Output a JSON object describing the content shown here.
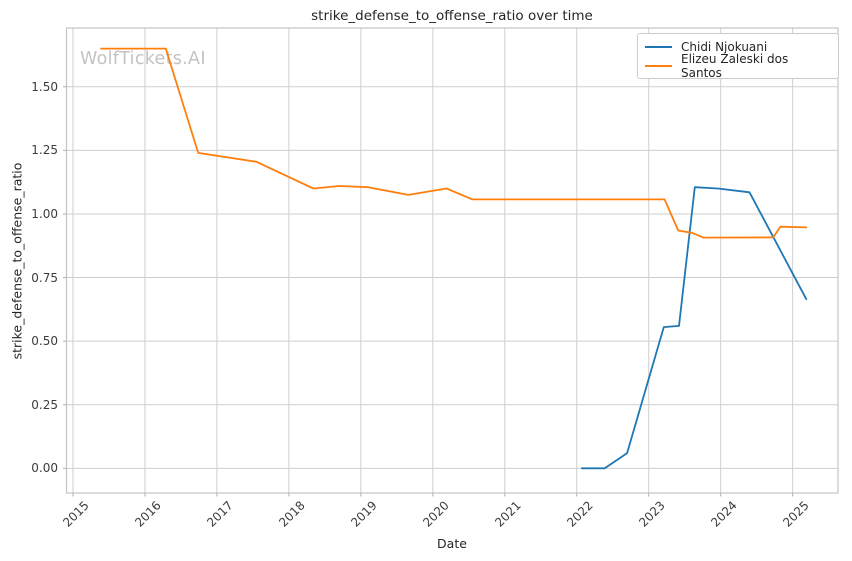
{
  "watermark": "WolfTickets.AI",
  "chart_data": {
    "type": "line",
    "title": "strike_defense_to_offense_ratio over time",
    "xlabel": "Date",
    "ylabel": "strike_defense_to_offense_ratio",
    "xlim": [
      2014.91,
      2025.63
    ],
    "ylim": [
      -0.097,
      1.731
    ],
    "x_ticks": [
      2015,
      2016,
      2017,
      2018,
      2019,
      2020,
      2021,
      2022,
      2023,
      2024,
      2025
    ],
    "y_ticks": [
      0.0,
      0.25,
      0.5,
      0.75,
      1.0,
      1.25,
      1.5
    ],
    "y_tick_labels": [
      "0.00",
      "0.25",
      "0.50",
      "0.75",
      "1.00",
      "1.25",
      "1.50"
    ],
    "grid": true,
    "legend_position": "upper-right",
    "colors": {
      "grid": "#cfcfcf",
      "spine": "#c4c4c4",
      "tick_mark": "#b0b0b0",
      "text": "#262626",
      "watermark": "#c3c3c3"
    },
    "series": [
      {
        "name": "Chidi Njokuani",
        "color": "#1f77b4",
        "points": [
          [
            2022.07,
            0.0
          ],
          [
            2022.39,
            0.0
          ],
          [
            2022.7,
            0.06
          ],
          [
            2023.21,
            0.555
          ],
          [
            2023.42,
            0.56
          ],
          [
            2023.64,
            1.105
          ],
          [
            2023.96,
            1.1
          ],
          [
            2024.4,
            1.085
          ],
          [
            2025.19,
            0.665
          ]
        ]
      },
      {
        "name": "Elizeu Zaleski dos Santos",
        "color": "#ff7f0e",
        "points": [
          [
            2015.39,
            1.65
          ],
          [
            2016.29,
            1.65
          ],
          [
            2016.74,
            1.24
          ],
          [
            2017.55,
            1.205
          ],
          [
            2018.34,
            1.1
          ],
          [
            2018.7,
            1.11
          ],
          [
            2019.1,
            1.105
          ],
          [
            2019.66,
            1.075
          ],
          [
            2020.19,
            1.1
          ],
          [
            2020.55,
            1.057
          ],
          [
            2023.22,
            1.057
          ],
          [
            2023.41,
            0.935
          ],
          [
            2023.6,
            0.926
          ],
          [
            2023.76,
            0.907
          ],
          [
            2024.73,
            0.908
          ],
          [
            2024.83,
            0.95
          ],
          [
            2025.19,
            0.947
          ]
        ]
      }
    ]
  }
}
